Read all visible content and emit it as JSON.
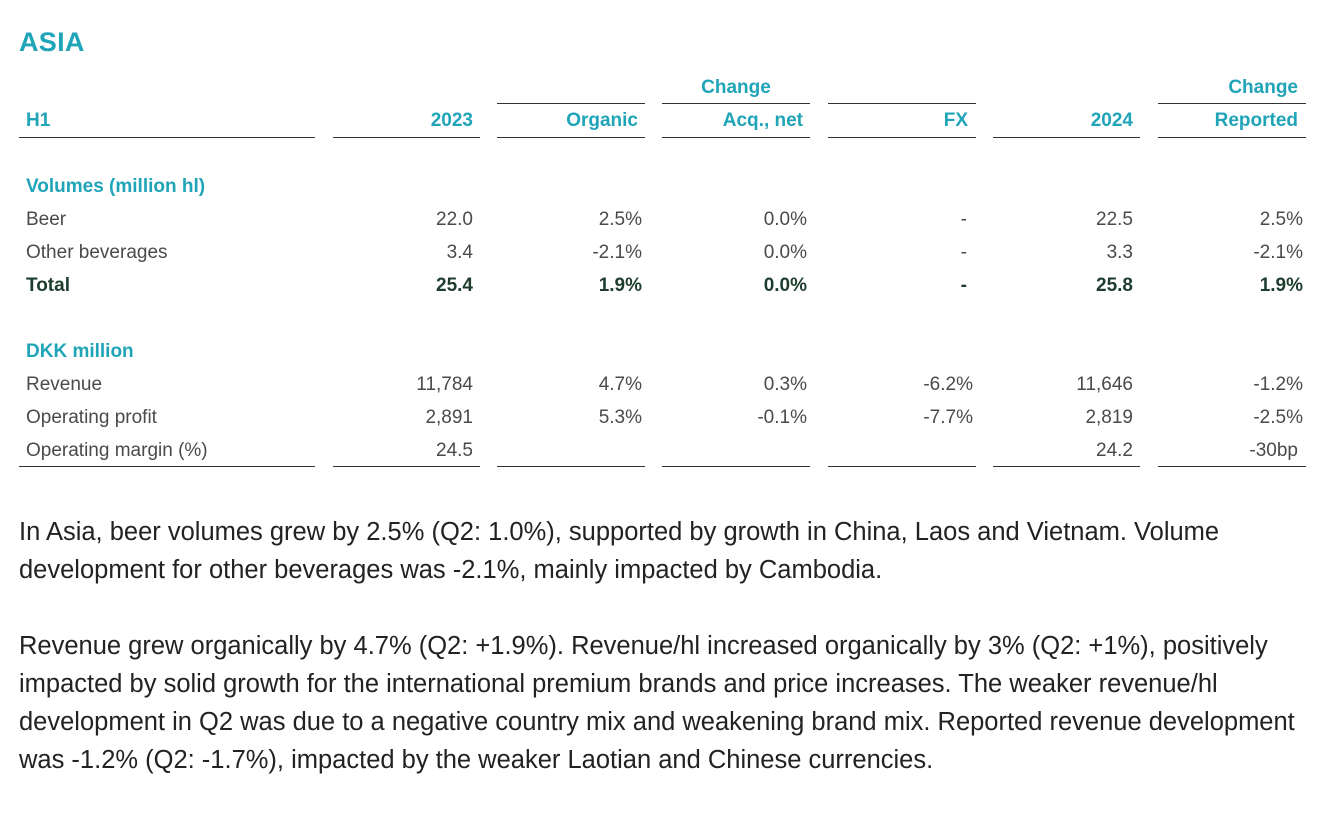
{
  "title": "ASIA",
  "table": {
    "group_headers": {
      "change_left": "Change",
      "change_right": "Change"
    },
    "columns": [
      "H1",
      "2023",
      "Organic",
      "Acq., net",
      "FX",
      "2024",
      "Reported"
    ],
    "sections": [
      {
        "heading": "Volumes (million hl)",
        "rows": [
          {
            "label": "Beer",
            "values": [
              "22.0",
              "2.5%",
              "0.0%",
              "-",
              "22.5",
              "2.5%"
            ]
          },
          {
            "label": "Other beverages",
            "values": [
              "3.4",
              "-2.1%",
              "0.0%",
              "-",
              "3.3",
              "-2.1%"
            ]
          },
          {
            "label": "Total",
            "values": [
              "25.4",
              "1.9%",
              "0.0%",
              "-",
              "25.8",
              "1.9%"
            ]
          }
        ]
      },
      {
        "heading": "DKK million",
        "rows": [
          {
            "label": "Revenue",
            "values": [
              "11,784",
              "4.7%",
              "0.3%",
              "-6.2%",
              "11,646",
              "-1.2%"
            ]
          },
          {
            "label": "Operating profit",
            "values": [
              "2,891",
              "5.3%",
              "-0.1%",
              "-7.7%",
              "2,819",
              "-2.5%"
            ]
          },
          {
            "label": "Operating margin (%)",
            "values": [
              "24.5",
              "",
              "",
              "",
              "24.2",
              "-30bp"
            ]
          }
        ]
      }
    ]
  },
  "paragraphs": [
    "In Asia, beer volumes grew by 2.5% (Q2: 1.0%), supported by growth in China, Laos and Vietnam. Volume development for other beverages was -2.1%, mainly impacted by Cambodia.",
    "Revenue grew organically by 4.7% (Q2: +1.9%). Revenue/hl increased organically by 3% (Q2: +1%), positively impacted by solid growth for the international premium brands and price increases. The weaker revenue/hl development in Q2 was due to a negative country mix and weakening brand mix. Reported revenue development was -1.2% (Q2: -1.7%), impacted by the weaker Laotian and Chinese currencies."
  ],
  "colors": {
    "accent": "#1fa4b8",
    "total_text": "#1f3d2e",
    "body_text": "#222222"
  }
}
